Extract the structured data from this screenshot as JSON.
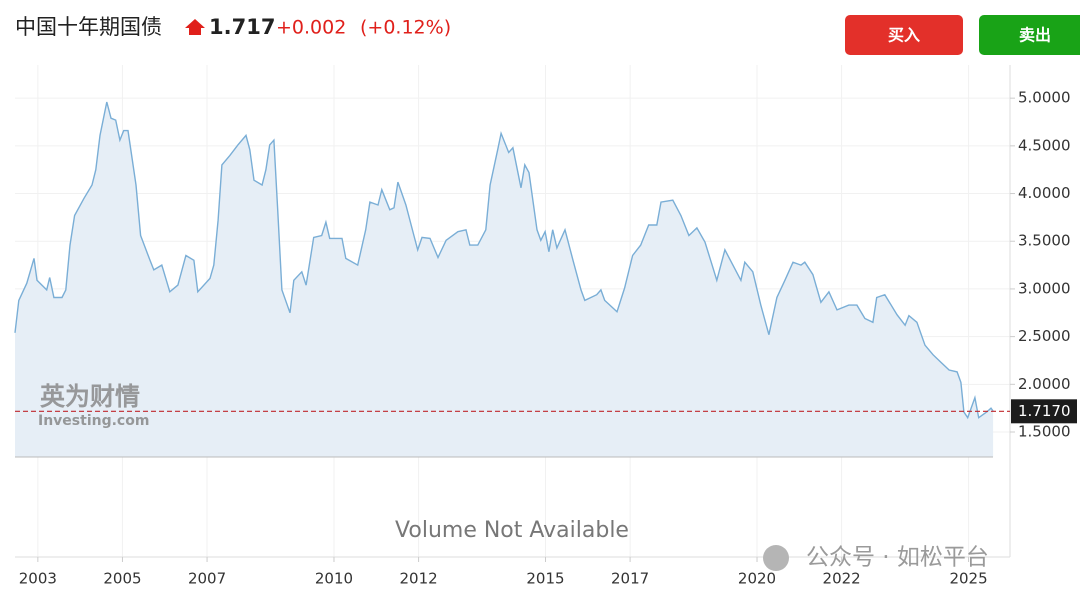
{
  "header": {
    "title": "中国十年期国债",
    "price": "1.717",
    "change": "+0.002",
    "change_pct": "(+0.12%)",
    "buy": "买入",
    "sell": "卖出"
  },
  "watermark": {
    "brand": "英为财情",
    "site": "Investing.com",
    "footer": "公众号 · 如松平台"
  },
  "chart_data": {
    "type": "area",
    "line_color": "#7aaed6",
    "fill_color": "#e6eef6",
    "grid": true,
    "volume_note": "Volume Not Available",
    "xlim": [
      2002.46,
      2025.98
    ],
    "ylim": [
      1.238,
      5.4
    ],
    "xticks": [
      2003,
      2005,
      2007,
      2010,
      2012,
      2015,
      2017,
      2020,
      2022,
      2025
    ],
    "yticks": [
      {
        "value": 1.5,
        "label": "1.5000"
      },
      {
        "value": 2,
        "label": "2.0000"
      },
      {
        "value": 2.5,
        "label": "2.5000"
      },
      {
        "value": 3,
        "label": "3.0000"
      },
      {
        "value": 3.5,
        "label": "3.5000"
      },
      {
        "value": 4,
        "label": "4.0000"
      },
      {
        "value": 4.5,
        "label": "4.5000"
      },
      {
        "value": 5,
        "label": "5.0000"
      }
    ],
    "last_value": {
      "value": 1.717,
      "label": "1.7170"
    },
    "x": [
      2002.46,
      2002.55,
      2002.74,
      2002.91,
      2002.98,
      2003.21,
      2003.28,
      2003.38,
      2003.57,
      2003.66,
      2003.76,
      2003.87,
      2004.09,
      2004.28,
      2004.37,
      2004.47,
      2004.63,
      2004.73,
      2004.84,
      2004.94,
      2005.03,
      2005.13,
      2005.32,
      2005.43,
      2005.65,
      2005.74,
      2005.93,
      2006.12,
      2006.31,
      2006.5,
      2006.69,
      2006.78,
      2007.07,
      2007.16,
      2007.26,
      2007.35,
      2007.54,
      2007.73,
      2007.92,
      2008.01,
      2008.11,
      2008.3,
      2008.39,
      2008.48,
      2008.58,
      2008.67,
      2008.77,
      2008.96,
      2009.05,
      2009.24,
      2009.34,
      2009.52,
      2009.71,
      2009.81,
      2009.9,
      2010.19,
      2010.28,
      2010.56,
      2010.75,
      2010.85,
      2011.04,
      2011.13,
      2011.32,
      2011.42,
      2011.51,
      2011.7,
      2011.89,
      2011.98,
      2012.08,
      2012.27,
      2012.46,
      2012.65,
      2012.93,
      2013.12,
      2013.21,
      2013.4,
      2013.59,
      2013.69,
      2013.87,
      2013.95,
      2014.13,
      2014.23,
      2014.42,
      2014.51,
      2014.61,
      2014.8,
      2014.89,
      2014.99,
      2015.08,
      2015.17,
      2015.27,
      2015.46,
      2015.65,
      2015.84,
      2015.93,
      2016.21,
      2016.31,
      2016.4,
      2016.69,
      2016.87,
      2017.06,
      2017.25,
      2017.44,
      2017.63,
      2017.73,
      2018.01,
      2018.2,
      2018.39,
      2018.58,
      2018.77,
      2018.96,
      2019.05,
      2019.24,
      2019.43,
      2019.62,
      2019.71,
      2019.9,
      2020.09,
      2020.28,
      2020.47,
      2020.66,
      2020.85,
      2021.04,
      2021.13,
      2021.32,
      2021.51,
      2021.7,
      2021.89,
      2022.17,
      2022.36,
      2022.55,
      2022.74,
      2022.83,
      2023.02,
      2023.31,
      2023.5,
      2023.59,
      2023.78,
      2023.97,
      2024.16,
      2024.35,
      2024.54,
      2024.73,
      2024.82,
      2024.89,
      2024.98,
      2025.15,
      2025.24,
      2025.43,
      2025.53,
      2025.58
    ],
    "values": [
      2.54,
      2.88,
      3.06,
      3.32,
      3.09,
      2.99,
      3.12,
      2.91,
      2.91,
      2.99,
      3.46,
      3.77,
      3.95,
      4.09,
      4.25,
      4.61,
      4.96,
      4.79,
      4.77,
      4.56,
      4.66,
      4.66,
      4.09,
      3.56,
      3.3,
      3.2,
      3.25,
      2.97,
      3.04,
      3.35,
      3.3,
      2.97,
      3.11,
      3.25,
      3.72,
      4.3,
      4.4,
      4.51,
      4.61,
      4.46,
      4.14,
      4.09,
      4.25,
      4.51,
      4.56,
      3.83,
      2.99,
      2.75,
      3.09,
      3.18,
      3.04,
      3.54,
      3.56,
      3.7,
      3.53,
      3.53,
      3.32,
      3.25,
      3.62,
      3.91,
      3.88,
      4.04,
      3.83,
      3.85,
      4.12,
      3.88,
      3.56,
      3.41,
      3.54,
      3.53,
      3.33,
      3.51,
      3.6,
      3.62,
      3.46,
      3.46,
      3.62,
      4.09,
      4.46,
      4.63,
      4.43,
      4.48,
      4.06,
      4.3,
      4.22,
      3.62,
      3.51,
      3.6,
      3.39,
      3.62,
      3.43,
      3.62,
      3.3,
      2.99,
      2.88,
      2.94,
      2.99,
      2.88,
      2.76,
      3.01,
      3.35,
      3.46,
      3.67,
      3.67,
      3.91,
      3.93,
      3.77,
      3.56,
      3.64,
      3.49,
      3.22,
      3.09,
      3.41,
      3.25,
      3.09,
      3.28,
      3.18,
      2.83,
      2.52,
      2.91,
      3.09,
      3.28,
      3.25,
      3.28,
      3.15,
      2.86,
      2.97,
      2.78,
      2.83,
      2.83,
      2.69,
      2.65,
      2.91,
      2.94,
      2.73,
      2.62,
      2.72,
      2.65,
      2.41,
      2.31,
      2.23,
      2.15,
      2.13,
      2.02,
      1.71,
      1.65,
      1.86,
      1.65,
      1.71,
      1.75,
      1.72
    ]
  }
}
